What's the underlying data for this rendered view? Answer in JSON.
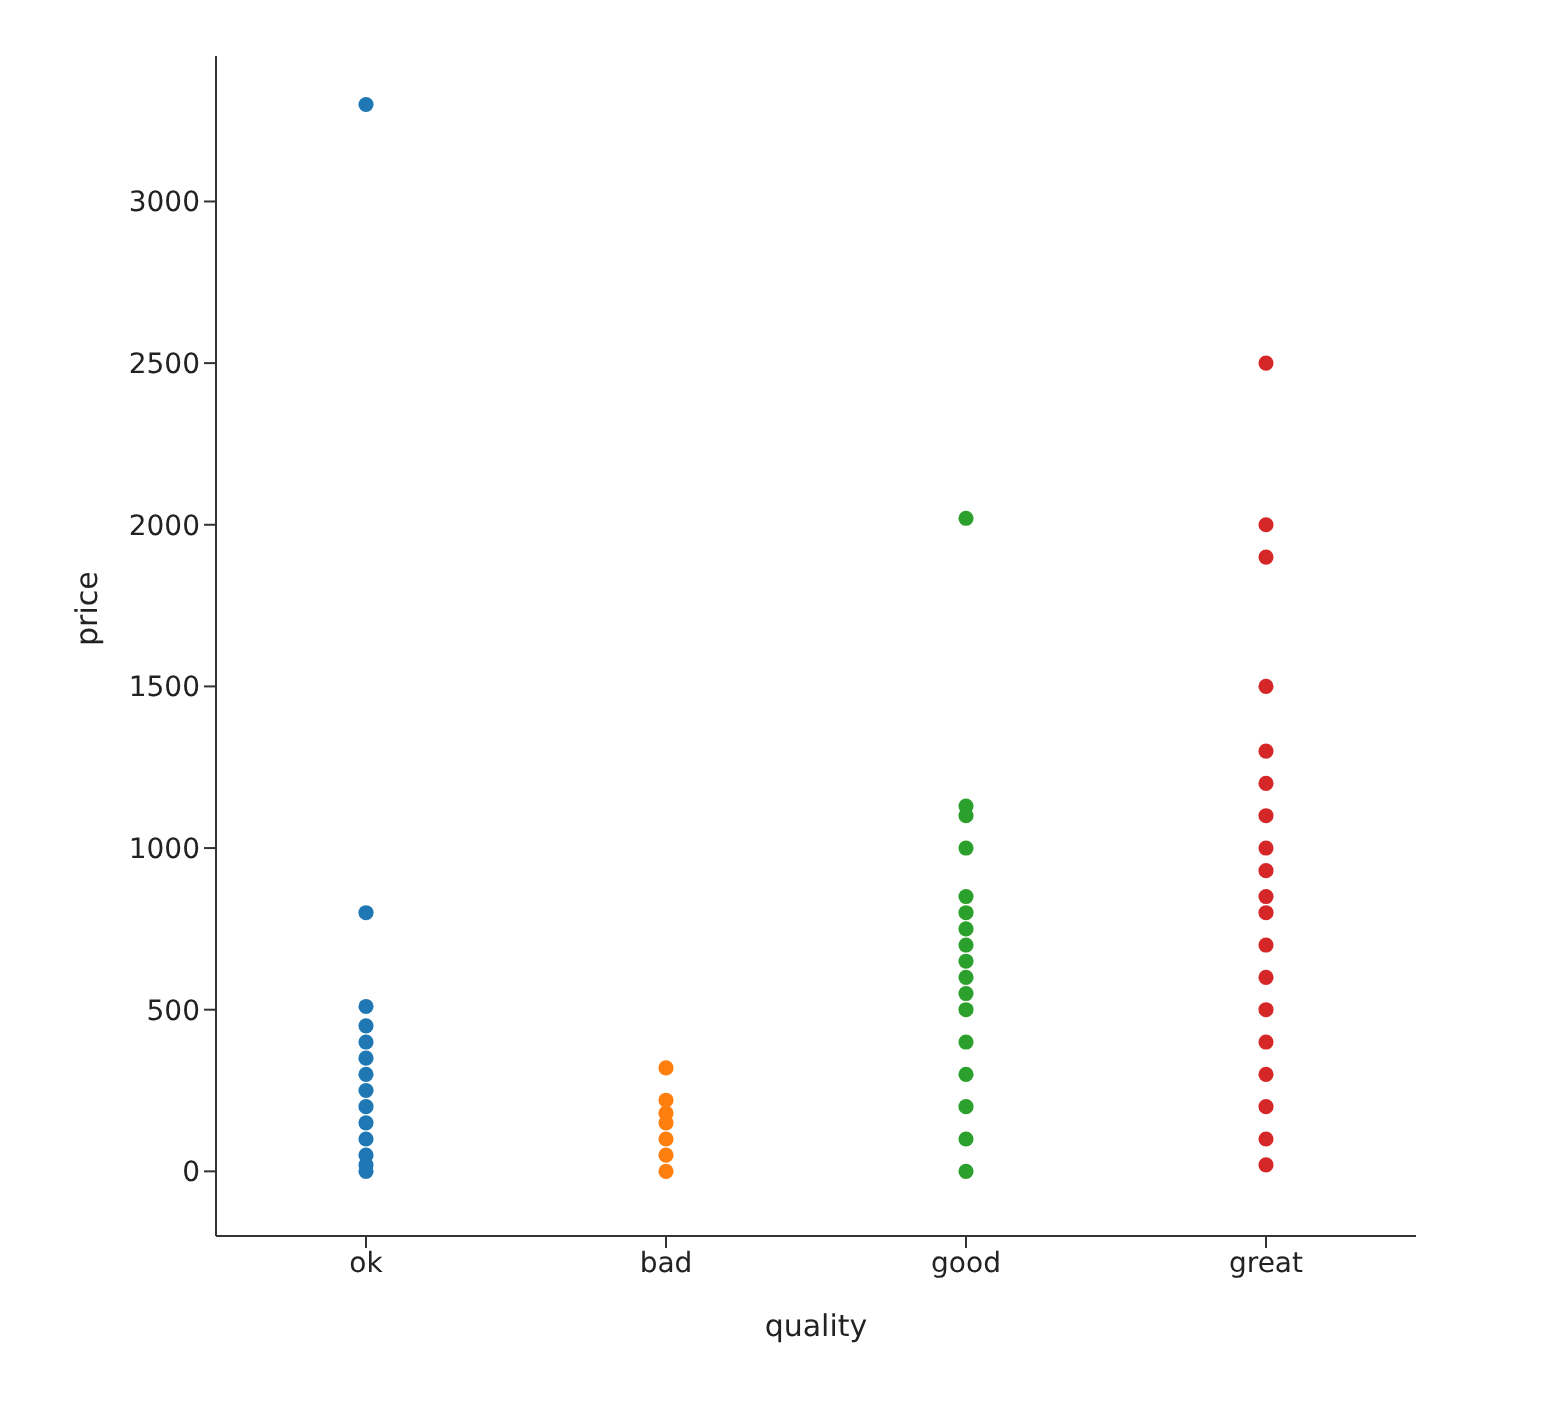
{
  "chart_data": {
    "type": "scatter",
    "xlabel": "quality",
    "ylabel": "price",
    "categories": [
      "ok",
      "bad",
      "good",
      "great"
    ],
    "series": [
      {
        "color": "#1f77b4",
        "x": [
          "ok",
          "ok",
          "ok",
          "ok",
          "ok",
          "ok",
          "ok",
          "ok",
          "ok",
          "ok",
          "ok",
          "ok",
          "ok",
          "ok"
        ],
        "values": [
          3300,
          800,
          510,
          450,
          400,
          350,
          300,
          250,
          200,
          150,
          100,
          50,
          20,
          0
        ]
      },
      {
        "color": "#ff7f0e",
        "x": [
          "bad",
          "bad",
          "bad",
          "bad",
          "bad",
          "bad",
          "bad"
        ],
        "values": [
          320,
          220,
          180,
          150,
          100,
          50,
          0
        ]
      },
      {
        "color": "#2ca02c",
        "x": [
          "good",
          "good",
          "good",
          "good",
          "good",
          "good",
          "good",
          "good",
          "good",
          "good",
          "good",
          "good",
          "good",
          "good",
          "good",
          "good",
          "good"
        ],
        "values": [
          2020,
          1130,
          1100,
          1000,
          850,
          800,
          750,
          700,
          650,
          600,
          550,
          500,
          400,
          300,
          200,
          100,
          0
        ]
      },
      {
        "color": "#d62728",
        "x": [
          "great",
          "great",
          "great",
          "great",
          "great",
          "great",
          "great",
          "great",
          "great",
          "great",
          "great",
          "great",
          "great",
          "great",
          "great",
          "great",
          "great",
          "great",
          "great"
        ],
        "values": [
          2500,
          2000,
          1900,
          1500,
          1300,
          1200,
          1100,
          1000,
          930,
          850,
          800,
          700,
          600,
          500,
          400,
          300,
          200,
          100,
          20
        ]
      }
    ],
    "ylim": [
      -200,
      3450
    ],
    "yticks": [
      0,
      500,
      1000,
      1500,
      2000,
      2500,
      3000
    ],
    "grid": false,
    "legend": false,
    "marker": "circle"
  }
}
